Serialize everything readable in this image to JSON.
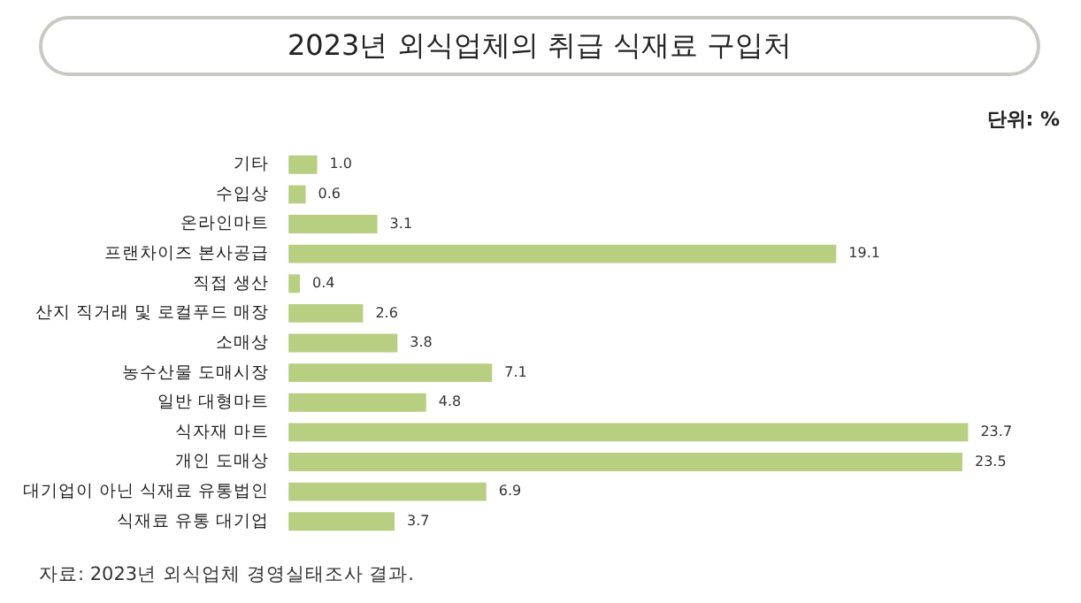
{
  "chart_data": {
    "type": "bar",
    "orientation": "horizontal",
    "title": "2023년 외식업체의 취급 식재료 구입처",
    "categories": [
      "기타",
      "수입상",
      "온라인마트",
      "프랜차이즈 본사공급",
      "직접 생산",
      "산지 직거래 및 로컬푸드 매장",
      "소매상",
      "농수산물 도매시장",
      "일반 대형마트",
      "식자재 마트",
      "개인 도매상",
      "대기업이 아닌 식재료 유통법인",
      "식재료 유통 대기업"
    ],
    "values": [
      1.0,
      0.6,
      3.1,
      19.1,
      0.4,
      2.6,
      3.8,
      7.1,
      4.8,
      23.7,
      23.5,
      6.9,
      3.7
    ],
    "color": "#b8cf82",
    "value_labels": [
      "1.0",
      "0.6",
      "3.1",
      "19.1",
      "0.4",
      "2.6",
      "3.8",
      "7.1",
      "4.8",
      "23.7",
      "23.5",
      "6.9",
      "3.7"
    ],
    "annotations": [
      "단위: %",
      "자료: 2023년 외식업체 경영실태조사 결과."
    ]
  }
}
